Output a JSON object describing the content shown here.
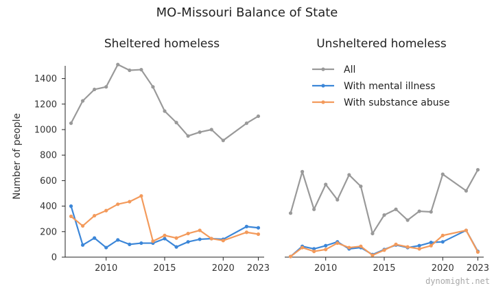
{
  "title": "MO-Missouri Balance of State",
  "watermark": "dynomight.net",
  "colors": {
    "All": "#999999",
    "With mental illness": "#3b86d8",
    "With substance abuse": "#f39a5b"
  },
  "legend": {
    "placement": "upper-right of right panel",
    "entries": [
      "All",
      "With mental illness",
      "With substance abuse"
    ]
  },
  "chart_data": [
    {
      "type": "line",
      "title": "Sheltered homeless",
      "ylabel": "Number of people",
      "xlim": [
        2006.5,
        2023.5
      ],
      "ylim": [
        0,
        1500
      ],
      "xticks": [
        2010,
        2015,
        2020,
        2023
      ],
      "yticks": [
        0,
        200,
        400,
        600,
        800,
        1000,
        1200,
        1400
      ],
      "series": [
        {
          "name": "All",
          "x": [
            2007,
            2008,
            2009,
            2010,
            2011,
            2012,
            2013,
            2014,
            2015,
            2016,
            2017,
            2018,
            2019,
            2020,
            2022,
            2023
          ],
          "y": [
            1050,
            1225,
            1315,
            1335,
            1510,
            1465,
            1470,
            1335,
            1145,
            1055,
            950,
            980,
            1000,
            915,
            1050,
            1105
          ]
        },
        {
          "name": "With mental illness",
          "x": [
            2007,
            2008,
            2009,
            2010,
            2011,
            2012,
            2013,
            2014,
            2015,
            2016,
            2017,
            2018,
            2019,
            2020,
            2022,
            2023
          ],
          "y": [
            400,
            95,
            150,
            75,
            135,
            100,
            110,
            110,
            145,
            80,
            120,
            140,
            145,
            140,
            240,
            230
          ]
        },
        {
          "name": "With substance abuse",
          "x": [
            2007,
            2008,
            2009,
            2010,
            2011,
            2012,
            2013,
            2014,
            2015,
            2016,
            2017,
            2018,
            2019,
            2020,
            2022,
            2023
          ],
          "y": [
            320,
            245,
            325,
            365,
            415,
            435,
            480,
            125,
            170,
            150,
            185,
            210,
            145,
            130,
            195,
            180
          ]
        }
      ]
    },
    {
      "type": "line",
      "title": "Unsheltered homeless",
      "xlim": [
        2006.5,
        2023.5
      ],
      "ylim": [
        0,
        1500
      ],
      "xticks": [
        2010,
        2015,
        2020,
        2023
      ],
      "series": [
        {
          "name": "All",
          "x": [
            2007,
            2008,
            2009,
            2010,
            2011,
            2012,
            2013,
            2014,
            2015,
            2016,
            2017,
            2018,
            2019,
            2020,
            2022,
            2023
          ],
          "y": [
            345,
            670,
            375,
            570,
            450,
            645,
            555,
            185,
            330,
            375,
            290,
            360,
            355,
            650,
            520,
            685
          ]
        },
        {
          "name": "With mental illness",
          "x": [
            2007,
            2008,
            2009,
            2010,
            2011,
            2012,
            2013,
            2014,
            2015,
            2016,
            2017,
            2018,
            2019,
            2020,
            2022,
            2023
          ],
          "y": [
            5,
            85,
            65,
            90,
            120,
            65,
            75,
            20,
            60,
            95,
            75,
            90,
            115,
            120,
            210,
            45
          ]
        },
        {
          "name": "With substance abuse",
          "x": [
            2007,
            2008,
            2009,
            2010,
            2011,
            2012,
            2013,
            2014,
            2015,
            2016,
            2017,
            2018,
            2019,
            2020,
            2022,
            2023
          ],
          "y": [
            5,
            75,
            45,
            60,
            110,
            75,
            85,
            15,
            55,
            100,
            80,
            65,
            90,
            170,
            210,
            40
          ]
        }
      ]
    }
  ]
}
